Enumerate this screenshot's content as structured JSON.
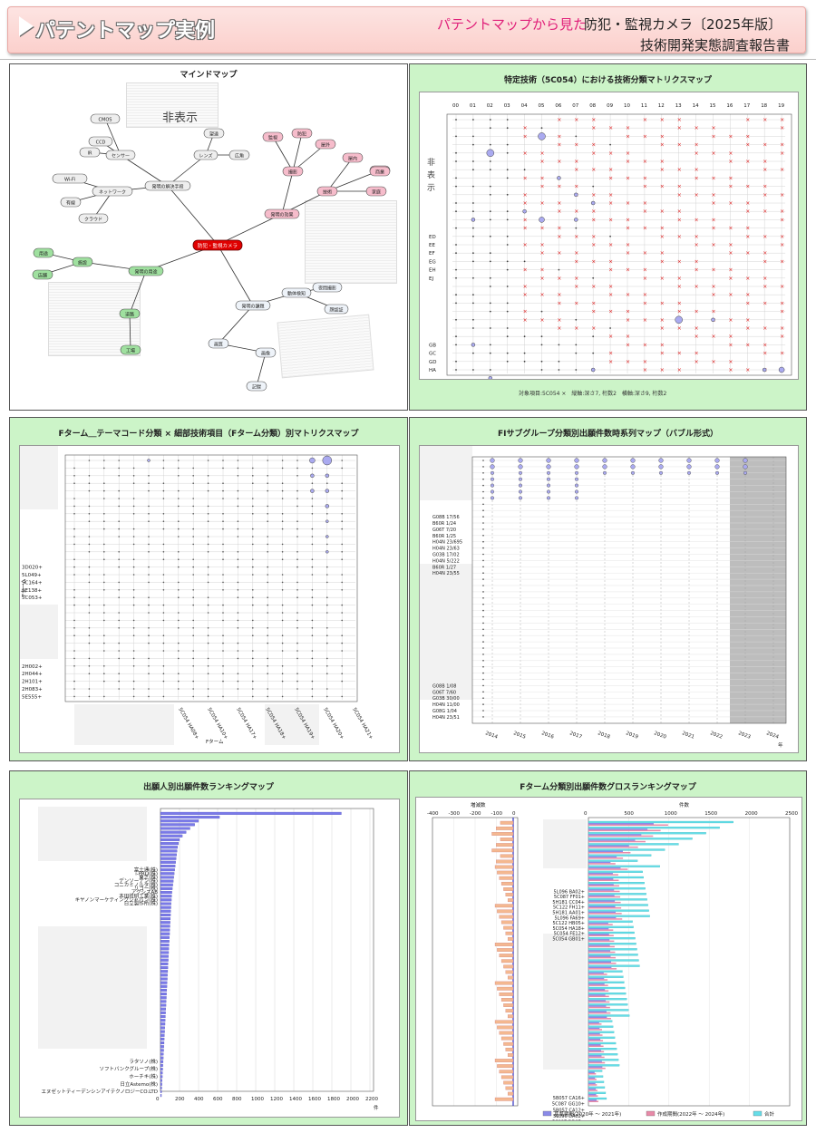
{
  "header": {
    "title": "パテントマップ実例",
    "subtitle_pink": "パテントマップから見た",
    "subtitle_main": "防犯・監視カメラ〔2025年版〕",
    "subtitle_line2": "技術開発実態調査報告書"
  },
  "panels": {
    "mindmap": {
      "title": "マインドマップ",
      "hidden_label": "非表示",
      "center": "防犯・監視カメラ",
      "nodes": [
        "CMOS",
        "CCD",
        "IR",
        "センサー",
        "レンズ",
        "望遠",
        "広角",
        "発明の解決手段",
        "Wi-Fi",
        "有線",
        "ネットワーク",
        "クラウド",
        "監視",
        "防犯",
        "屋外",
        "屋内",
        "夜間",
        "発明の効果",
        "撮影",
        "技術",
        "家庭",
        "商業",
        "用途",
        "発明の用途",
        "施設",
        "店舗",
        "道路",
        "工場",
        "発明の課題",
        "画質",
        "動体検知",
        "夜間撮影",
        "顔認証",
        "画像",
        "記録"
      ]
    },
    "matrix1": {
      "title": "特定技術（5C054）における技術分類マトリクスマップ",
      "hidden_label": "非表示",
      "cols": [
        "00",
        "01",
        "02",
        "03",
        "04",
        "05",
        "06",
        "07",
        "08",
        "09",
        "10",
        "11",
        "12",
        "13",
        "14",
        "15",
        "16",
        "17",
        "18",
        "19"
      ],
      "rows_bottom": [
        "GB",
        "GC",
        "GD",
        "HA"
      ],
      "rows_mid": [
        "ED",
        "EE",
        "EF",
        "EG",
        "EH",
        "EJ"
      ],
      "footer": "対象項目:5C054 ×　縦軸:深さ7, 桁数2　横軸:深さ9, 桁数2"
    },
    "matrix2": {
      "title": "Fターム＿テーマコード分類 × 細部技術項目（Fターム分類）別マトリクスマップ",
      "yaxis": "Fターム",
      "xaxis": "Fターム",
      "rows": [
        "3D020+",
        "5L049+",
        "5C164+",
        "3E138+",
        "5C053+"
      ],
      "rows2": [
        "2H002+",
        "2H044+",
        "2H101+",
        "2H083+",
        "5E555+"
      ],
      "cols": [
        "5C054 HA08+",
        "5C054 HA10+",
        "5C054 HA17+",
        "5C054 HA18+",
        "5C054 HA19+",
        "5C054 HA20+",
        "5C054 HA21+"
      ]
    },
    "bubble": {
      "title": "FIサブグループ分類別出願件数時系列マップ（バブル形式）",
      "rows": [
        "G08B 17/56",
        "B60R 1/24",
        "G06T 7/20",
        "B60R 1/25",
        "H04N 23/695",
        "H04N 23/63",
        "G03B 17/02",
        "H04N 5/222",
        "B60R 1/27",
        "H04N 23/55"
      ],
      "rows_bottom": [
        "G08B 1/08",
        "G06T 7/60",
        "G03B 30/00",
        "H04N 11/00",
        "G08G 1/04",
        "H04N 23/51"
      ],
      "years": [
        "2014",
        "2015",
        "2016",
        "2017",
        "2018",
        "2019",
        "2020",
        "2021",
        "2022",
        "2023",
        "2024"
      ],
      "year_unit": "年"
    },
    "ranking": {
      "title": "出願人別出願件数ランキングマップ",
      "applicants_top": [
        "富士通(株)",
        "i-PRO(株)",
        "東芝(株)",
        "デンソーテン(株)",
        "コニカミノルタ(株)",
        "リコー(株)",
        "アクシスAB",
        "本田技研工業(株)",
        "キヤノンマーケティングジャパン(株)",
        "日立製作所(株)"
      ],
      "applicants_bottom": [
        "ラタソノ(株)",
        "ソフトバンクグループ(株)",
        "ホーチキ(株)",
        "日立Astemo(株)",
        "エヌゼットティーデンシンアイテクノロジーCO.LTD"
      ],
      "ticks": [
        "0",
        "200",
        "400",
        "600",
        "800",
        "1000",
        "1200",
        "1400",
        "1600",
        "1800",
        "2000",
        "2200"
      ],
      "xunit": "件",
      "values": [
        1900,
        620,
        400,
        360,
        310,
        270,
        230,
        200,
        190,
        180,
        175,
        170,
        165,
        160,
        155,
        150,
        145,
        140,
        135,
        130,
        125,
        120,
        118,
        115,
        112,
        110,
        108,
        106,
        104,
        102,
        100,
        98,
        96,
        94,
        92,
        90,
        88,
        86,
        84,
        82,
        80,
        78,
        76,
        74,
        72,
        70,
        68,
        66,
        64,
        62,
        60,
        58,
        56,
        54,
        52,
        50,
        48,
        46,
        44,
        42,
        40,
        38,
        36,
        34,
        32,
        30,
        28,
        26,
        24,
        22,
        20,
        18,
        16,
        14,
        12,
        10
      ]
    },
    "gross": {
      "title": "Fターム分類別出願件数グロスランキングマップ",
      "left_label": "増減数",
      "right_label": "件数",
      "left_ticks": [
        "-400",
        "-300",
        "-200",
        "-100",
        "0"
      ],
      "right_ticks": [
        "0",
        "500",
        "1000",
        "1500",
        "2000",
        "2500"
      ],
      "labels_mid": [
        "5L096 BA02+",
        "5C087 FF01+",
        "5H181 CC04+",
        "5C122 FH11+",
        "5H181 AA01+",
        "5L096 FA69+",
        "5C122 HB05+",
        "5C054 HA18+",
        "5C054 FE12+",
        "5C054 GB01+"
      ],
      "labels_bottom": [
        "5B057 CA16+",
        "5C087 GG10+",
        "5B057 CA12+",
        "5L096 DA02+",
        "5C087 DD05+"
      ],
      "legend": [
        "基準期間(2020年 ～ 2021年)",
        "作成期間(2022年 ～ 2024年)",
        "合計"
      ],
      "colors": {
        "base": "#8a8ae8",
        "create": "#e88aa8",
        "total": "#66dde8",
        "delta": "#f4b890"
      }
    }
  }
}
